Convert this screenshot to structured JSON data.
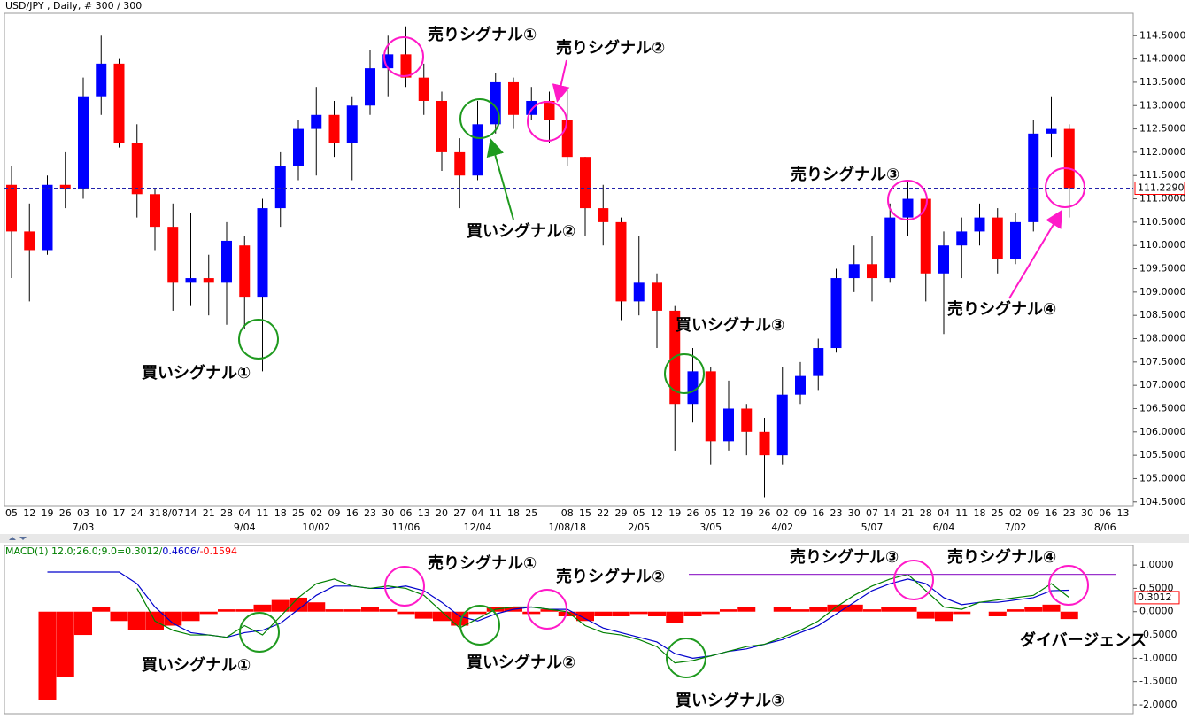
{
  "chart_data": [
    {
      "type": "candlestick",
      "title": "USD/JPY , Daily, # 300 / 300",
      "categories": [
        "05",
        "12",
        "19",
        "26",
        "03",
        "10",
        "17",
        "24",
        "31",
        "8/07",
        "14",
        "21",
        "28",
        "04",
        "11",
        "18",
        "25",
        "02",
        "09",
        "16",
        "23",
        "30",
        "06",
        "13",
        "20",
        "27",
        "04",
        "11",
        "18",
        "25",
        null,
        "08",
        "15",
        "22",
        "29",
        "05",
        "12",
        "19",
        "26",
        "05",
        "12",
        "19",
        "26",
        "02",
        "09",
        "16",
        "23",
        "30",
        "07",
        "14",
        "21",
        "28",
        "04",
        "11",
        "18",
        "25",
        "02",
        "09",
        "16",
        "23",
        "30",
        "06",
        "13"
      ],
      "x_major": [
        null,
        null,
        null,
        null,
        "7/03",
        null,
        null,
        null,
        null,
        null,
        null,
        null,
        null,
        "9/04",
        null,
        null,
        null,
        "10/02",
        null,
        null,
        null,
        null,
        "11/06",
        null,
        null,
        null,
        "12/04",
        null,
        null,
        null,
        null,
        "1/08/18",
        null,
        null,
        null,
        "2/05",
        null,
        null,
        null,
        "3/05",
        null,
        null,
        null,
        "4/02",
        null,
        null,
        null,
        null,
        "5/07",
        null,
        null,
        null,
        "6/04",
        null,
        null,
        null,
        "7/02",
        null,
        null,
        null,
        null,
        "8/06",
        null
      ],
      "open": [
        111.3,
        110.3,
        109.9,
        111.3,
        111.2,
        113.2,
        113.9,
        112.2,
        111.1,
        110.4,
        109.2,
        109.3,
        109.2,
        110.0,
        108.9,
        110.8,
        111.7,
        112.5,
        112.8,
        112.2,
        113.0,
        113.8,
        114.1,
        113.6,
        113.1,
        112.0,
        111.5,
        112.6,
        113.5,
        112.8,
        113.1,
        112.7,
        111.9,
        110.8,
        110.5,
        108.8,
        109.2,
        108.6,
        106.6,
        107.3,
        105.8,
        106.5,
        106.0,
        105.5,
        106.8,
        107.2,
        107.8,
        109.3,
        109.6,
        109.3,
        110.6,
        111.0,
        109.4,
        110.0,
        110.3,
        110.6,
        109.7,
        110.5,
        112.4,
        112.5,
        null,
        null,
        null
      ],
      "high": [
        111.7,
        110.9,
        111.5,
        112.0,
        113.6,
        114.5,
        114.0,
        112.6,
        111.2,
        110.9,
        110.7,
        109.8,
        110.5,
        110.2,
        111.0,
        112.0,
        112.7,
        113.4,
        113.1,
        113.2,
        114.2,
        114.5,
        114.7,
        113.9,
        113.3,
        112.3,
        113.1,
        113.7,
        113.6,
        113.4,
        113.3,
        113.4,
        111.9,
        111.3,
        110.6,
        110.2,
        109.4,
        108.7,
        107.8,
        107.4,
        107.1,
        106.6,
        106.3,
        107.4,
        107.5,
        108.0,
        109.5,
        110.0,
        110.2,
        110.9,
        111.4,
        111.0,
        110.3,
        110.6,
        110.9,
        110.8,
        110.7,
        112.7,
        113.2,
        112.6,
        null,
        null,
        null
      ],
      "low": [
        109.3,
        108.8,
        109.8,
        110.8,
        111.0,
        112.8,
        112.1,
        110.6,
        109.9,
        108.6,
        108.7,
        108.5,
        108.3,
        108.2,
        107.3,
        110.4,
        111.4,
        111.5,
        111.9,
        111.4,
        112.8,
        113.2,
        113.4,
        112.8,
        111.6,
        110.8,
        111.4,
        112.4,
        112.5,
        112.7,
        112.2,
        111.7,
        110.2,
        110.0,
        108.4,
        108.5,
        107.8,
        105.6,
        106.2,
        105.3,
        105.6,
        105.5,
        104.6,
        105.3,
        106.6,
        106.9,
        107.7,
        109.0,
        108.8,
        109.2,
        110.2,
        108.8,
        108.1,
        109.3,
        110.0,
        109.4,
        109.6,
        110.3,
        111.9,
        110.6,
        null,
        null,
        null
      ],
      "close": [
        110.3,
        109.9,
        111.3,
        111.2,
        113.2,
        113.9,
        112.2,
        111.1,
        110.4,
        109.2,
        109.3,
        109.2,
        110.1,
        108.9,
        110.8,
        111.7,
        112.5,
        112.8,
        112.2,
        113.0,
        113.8,
        114.1,
        113.6,
        113.1,
        112.0,
        111.5,
        112.6,
        113.5,
        112.8,
        113.1,
        112.7,
        111.9,
        110.8,
        110.5,
        108.8,
        109.2,
        108.6,
        106.6,
        107.3,
        105.8,
        106.5,
        106.0,
        105.5,
        106.8,
        107.2,
        107.8,
        109.3,
        109.6,
        109.3,
        110.6,
        111.0,
        109.4,
        110.0,
        110.3,
        110.6,
        109.7,
        110.5,
        112.4,
        112.5,
        111.229,
        null,
        null,
        null
      ],
      "up_color": "#0000ff",
      "down_color": "#ff0000",
      "ylim": [
        104.42,
        114.98
      ],
      "yticks": [
        {
          "value": 104.5,
          "label": "104.5000"
        },
        {
          "value": 105,
          "label": "105.0000"
        },
        {
          "value": 105.5,
          "label": "105.5000"
        },
        {
          "value": 106,
          "label": "106.0000"
        },
        {
          "value": 106.5,
          "label": "106.5000"
        },
        {
          "value": 107,
          "label": "107.0000"
        },
        {
          "value": 107.5,
          "label": "107.5000"
        },
        {
          "value": 108,
          "label": "108.0000"
        },
        {
          "value": 108.5,
          "label": "108.5000"
        },
        {
          "value": 109,
          "label": "109.0000"
        },
        {
          "value": 109.5,
          "label": "109.5000"
        },
        {
          "value": 110,
          "label": "110.0000"
        },
        {
          "value": 110.5,
          "label": "110.5000"
        },
        {
          "value": 111,
          "label": "111.0000"
        },
        {
          "value": 111.5,
          "label": "111.5000"
        },
        {
          "value": 112,
          "label": "112.0000"
        },
        {
          "value": 112.5,
          "label": "112.5000"
        },
        {
          "value": 113,
          "label": "113.0000"
        },
        {
          "value": 113.5,
          "label": "113.5000"
        },
        {
          "value": 114,
          "label": "114.0000"
        },
        {
          "value": 114.5,
          "label": "114.5000"
        }
      ],
      "current_price": {
        "value": 111.229,
        "label": "111.2290"
      },
      "current_price_color": "#2222aa",
      "annotations": [
        {
          "text": "売りシグナル①",
          "color": "#ff19c8"
        },
        {
          "text": "売りシグナル②",
          "color": "#ff19c8"
        },
        {
          "text": "売りシグナル③",
          "color": "#ff19c8"
        },
        {
          "text": "売りシグナル④",
          "color": "#ff19c8"
        },
        {
          "text": "買いシグナル①",
          "color": "#1f9a1f"
        },
        {
          "text": "買いシグナル②",
          "color": "#1f9a1f"
        },
        {
          "text": "買いシグナル③",
          "color": "#1f9a1f"
        }
      ]
    },
    {
      "type": "macd",
      "label_parts": [
        {
          "text": "MACD(1) 12.0;26.0;9.0=0.3012/",
          "color": "#008000"
        },
        {
          "text": "0.4606/",
          "color": "#0000cc"
        },
        {
          "text": "-0.1594",
          "color": "#ff0000"
        }
      ],
      "histogram": {
        "color": "#ff0000",
        "values": [
          null,
          null,
          -1.9,
          -1.4,
          -0.5,
          0.1,
          -0.2,
          -0.4,
          -0.4,
          -0.3,
          -0.2,
          -0.05,
          0.05,
          0.05,
          0.15,
          0.25,
          0.3,
          0.2,
          0.05,
          0.05,
          0.1,
          0.05,
          -0.05,
          -0.15,
          -0.2,
          -0.3,
          -0.05,
          0.1,
          0.1,
          -0.05,
          0.05,
          -0.1,
          -0.2,
          -0.1,
          -0.1,
          -0.05,
          -0.1,
          -0.25,
          -0.1,
          -0.05,
          0.05,
          0.1,
          0.0,
          0.1,
          0.05,
          0.1,
          0.15,
          0.15,
          0.05,
          0.1,
          0.1,
          -0.15,
          -0.2,
          -0.05,
          0.0,
          -0.1,
          0.05,
          0.1,
          0.15,
          -0.1594,
          null,
          null,
          null
        ]
      },
      "macd": {
        "color": "#008000",
        "values": [
          null,
          null,
          null,
          null,
          null,
          null,
          null,
          0.5,
          -0.2,
          -0.4,
          -0.5,
          -0.5,
          -0.55,
          -0.3,
          -0.5,
          -0.1,
          0.3,
          0.6,
          0.7,
          0.55,
          0.5,
          0.55,
          0.5,
          0.35,
          0.0,
          -0.35,
          -0.15,
          0.05,
          0.1,
          0.1,
          0.05,
          0.0,
          -0.3,
          -0.45,
          -0.5,
          -0.6,
          -0.75,
          -1.1,
          -1.05,
          -0.95,
          -0.85,
          -0.75,
          -0.7,
          -0.55,
          -0.4,
          -0.2,
          0.1,
          0.35,
          0.55,
          0.7,
          0.8,
          0.45,
          0.1,
          0.05,
          0.2,
          0.25,
          0.3,
          0.35,
          0.6,
          0.3012,
          null,
          null,
          null
        ]
      },
      "signal": {
        "color": "#0000cc",
        "values": [
          null,
          null,
          0.85,
          0.85,
          0.85,
          0.85,
          0.85,
          0.6,
          0.1,
          -0.25,
          -0.45,
          -0.5,
          -0.55,
          -0.45,
          -0.4,
          -0.25,
          0.05,
          0.35,
          0.55,
          0.55,
          0.5,
          0.5,
          0.55,
          0.45,
          0.2,
          -0.1,
          -0.2,
          -0.05,
          0.05,
          0.1,
          0.05,
          0.05,
          -0.15,
          -0.35,
          -0.45,
          -0.55,
          -0.65,
          -0.9,
          -1.0,
          -0.95,
          -0.85,
          -0.8,
          -0.7,
          -0.6,
          -0.45,
          -0.3,
          -0.05,
          0.2,
          0.45,
          0.6,
          0.7,
          0.6,
          0.3,
          0.15,
          0.2,
          0.2,
          0.25,
          0.3,
          0.45,
          0.4606,
          null,
          null,
          null
        ]
      },
      "ylim": [
        -2.19,
        1.42
      ],
      "yticks": [
        {
          "value": 1,
          "label": "1.0000"
        },
        {
          "value": 0.5,
          "label": "0.5000"
        },
        {
          "value": 0,
          "label": "0.0000"
        },
        {
          "value": -0.5,
          "label": "-0.5000"
        },
        {
          "value": -1,
          "label": "-1.0000"
        },
        {
          "value": -1.5,
          "label": "-1.5000"
        },
        {
          "value": -2,
          "label": "-2.0000"
        }
      ],
      "current_value": {
        "value": 0.3012,
        "label": "0.3012"
      },
      "level_line": {
        "value": 0.8,
        "color": "#9933cc"
      },
      "annotations": [
        {
          "text": "売りシグナル①",
          "color": "#ff19c8"
        },
        {
          "text": "売りシグナル②",
          "color": "#ff19c8"
        },
        {
          "text": "売りシグナル③",
          "color": "#ff19c8"
        },
        {
          "text": "売りシグナル④",
          "color": "#ff19c8"
        },
        {
          "text": "買いシグナル①",
          "color": "#1f9a1f"
        },
        {
          "text": "買いシグナル②",
          "color": "#1f9a1f"
        },
        {
          "text": "買いシグナル③",
          "color": "#1f9a1f"
        },
        {
          "text": "ダイバージェンス",
          "color": "#1010e0"
        }
      ]
    }
  ]
}
